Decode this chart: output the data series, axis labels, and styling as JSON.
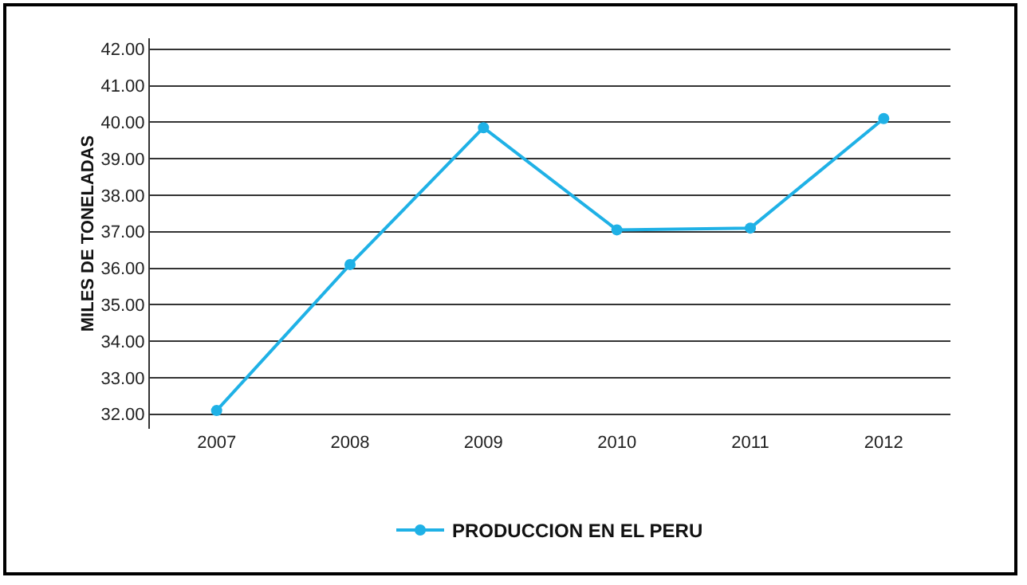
{
  "chart_data": {
    "type": "line",
    "ylabel": "MILES DE TONELADAS",
    "categories": [
      "2007",
      "2008",
      "2009",
      "2010",
      "2011",
      "2012"
    ],
    "series": [
      {
        "name": "PRODUCCION EN EL PERU",
        "color": "#1fb1e6",
        "values": [
          32.1,
          36.1,
          39.85,
          37.05,
          37.1,
          40.1
        ]
      }
    ],
    "ylim": [
      31.6,
      42.3
    ],
    "yticks": [
      {
        "value": 32,
        "label": "32.00"
      },
      {
        "value": 33,
        "label": "33.00"
      },
      {
        "value": 34,
        "label": "34.00"
      },
      {
        "value": 35,
        "label": "35.00"
      },
      {
        "value": 36,
        "label": "36.00"
      },
      {
        "value": 37,
        "label": "37.00"
      },
      {
        "value": 38,
        "label": "38.00"
      },
      {
        "value": 39,
        "label": "39.00"
      },
      {
        "value": 40,
        "label": "40.00"
      },
      {
        "value": 41,
        "label": "41.00"
      },
      {
        "value": 42,
        "label": "42.00"
      }
    ],
    "grid": "y",
    "legend": "bottom",
    "marker": "circle",
    "line_style": "solid"
  }
}
